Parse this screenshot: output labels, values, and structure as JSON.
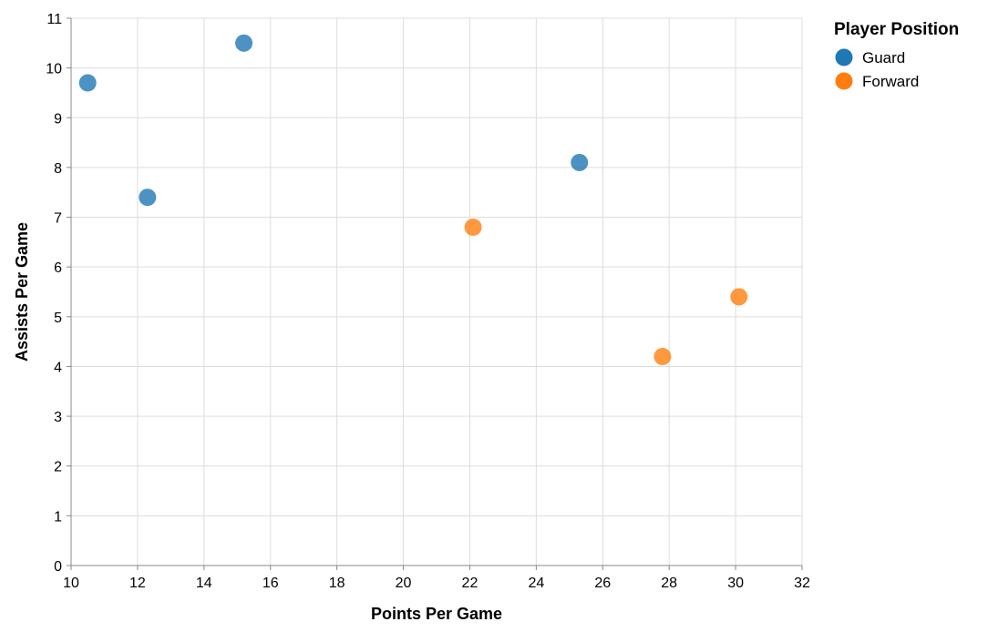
{
  "chart_data": {
    "type": "scatter",
    "xlabel": "Points Per Game",
    "ylabel": "Assists Per Game",
    "xlim": [
      10,
      32
    ],
    "ylim": [
      0,
      11
    ],
    "x_ticks": [
      10,
      12,
      14,
      16,
      18,
      20,
      22,
      24,
      26,
      28,
      30,
      32
    ],
    "y_ticks": [
      0,
      1,
      2,
      3,
      4,
      5,
      6,
      7,
      8,
      9,
      10,
      11
    ],
    "grid": true,
    "legend": {
      "title": "Player Position",
      "placement": "top-right"
    },
    "series": [
      {
        "name": "Guard",
        "color": "#1f77b4",
        "points": [
          {
            "x": 10.5,
            "y": 9.7
          },
          {
            "x": 12.3,
            "y": 7.4
          },
          {
            "x": 15.2,
            "y": 10.5
          },
          {
            "x": 25.3,
            "y": 8.1
          }
        ]
      },
      {
        "name": "Forward",
        "color": "#ff7f0e",
        "points": [
          {
            "x": 22.1,
            "y": 6.8
          },
          {
            "x": 27.8,
            "y": 4.2
          },
          {
            "x": 30.1,
            "y": 5.4
          }
        ]
      }
    ]
  }
}
